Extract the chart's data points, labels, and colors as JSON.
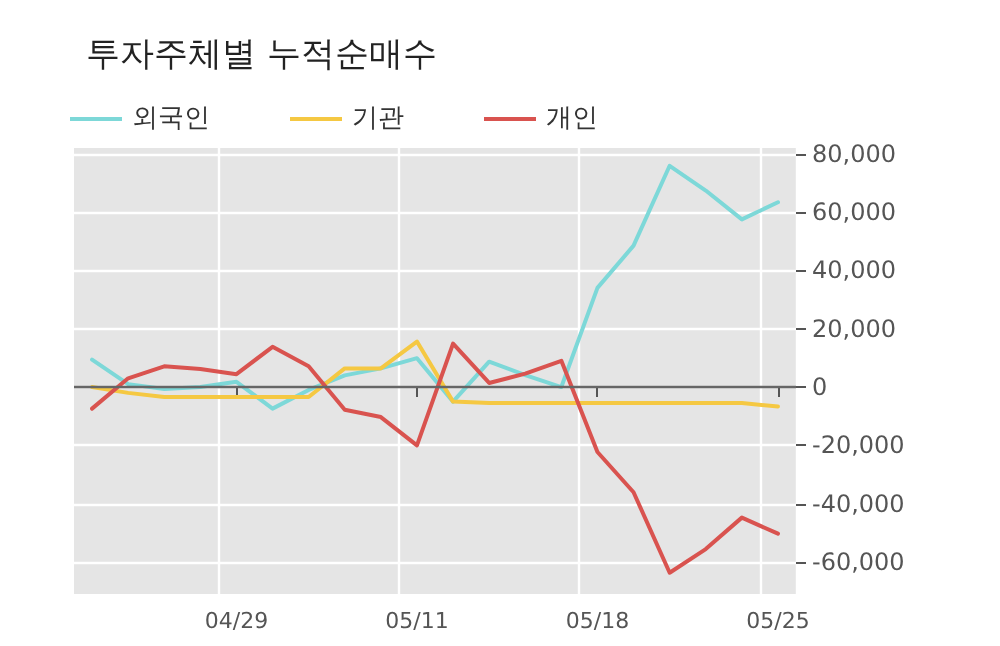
{
  "chart_data": {
    "type": "line",
    "title": "투자주체별 누적순매수",
    "categories": [
      null,
      null,
      null,
      null,
      "04/29",
      null,
      null,
      null,
      null,
      "05/11",
      null,
      null,
      null,
      null,
      "05/18",
      null,
      null,
      null,
      null,
      "05/25"
    ],
    "series": [
      {
        "name": "외국인",
        "color": "#7dd8d8",
        "values": [
          9400,
          1000,
          -700,
          0,
          1800,
          -7400,
          -1000,
          4000,
          6400,
          9900,
          -5000,
          8700,
          4100,
          0,
          34000,
          48500,
          75900,
          67400,
          57500,
          63400
        ]
      },
      {
        "name": "기관",
        "color": "#f5c842",
        "values": [
          0,
          -2000,
          -3400,
          -3400,
          -3400,
          -3400,
          -3400,
          6400,
          6400,
          15600,
          -5000,
          -5500,
          -5500,
          -5500,
          -5500,
          -5500,
          -5500,
          -5500,
          -5500,
          -6700
        ]
      },
      {
        "name": "개인",
        "color": "#d9534f",
        "values": [
          -7400,
          3000,
          7100,
          6200,
          4400,
          13800,
          7100,
          -7800,
          -10300,
          -20000,
          14900,
          1400,
          4600,
          9000,
          -22300,
          -36100,
          -63700,
          -55600,
          -44800,
          -50300
        ]
      }
    ],
    "ylim": [
      -71000,
      82000
    ],
    "yticks": [
      {
        "value": -60000,
        "label": "-60,000"
      },
      {
        "value": -40000,
        "label": "-40,000"
      },
      {
        "value": -20000,
        "label": "-20,000"
      },
      0,
      {
        "value": 20000,
        "label": "20,000"
      },
      {
        "value": 40000,
        "label": "40,000"
      },
      {
        "value": 60000,
        "label": "60,000"
      },
      {
        "value": 80000,
        "label": "80,000"
      }
    ],
    "ref_lines": [
      {
        "axis": "y",
        "value": 0,
        "color": "#666666"
      }
    ],
    "grid": true,
    "legend": "top left",
    "marker": "none",
    "line_style": "solid"
  }
}
